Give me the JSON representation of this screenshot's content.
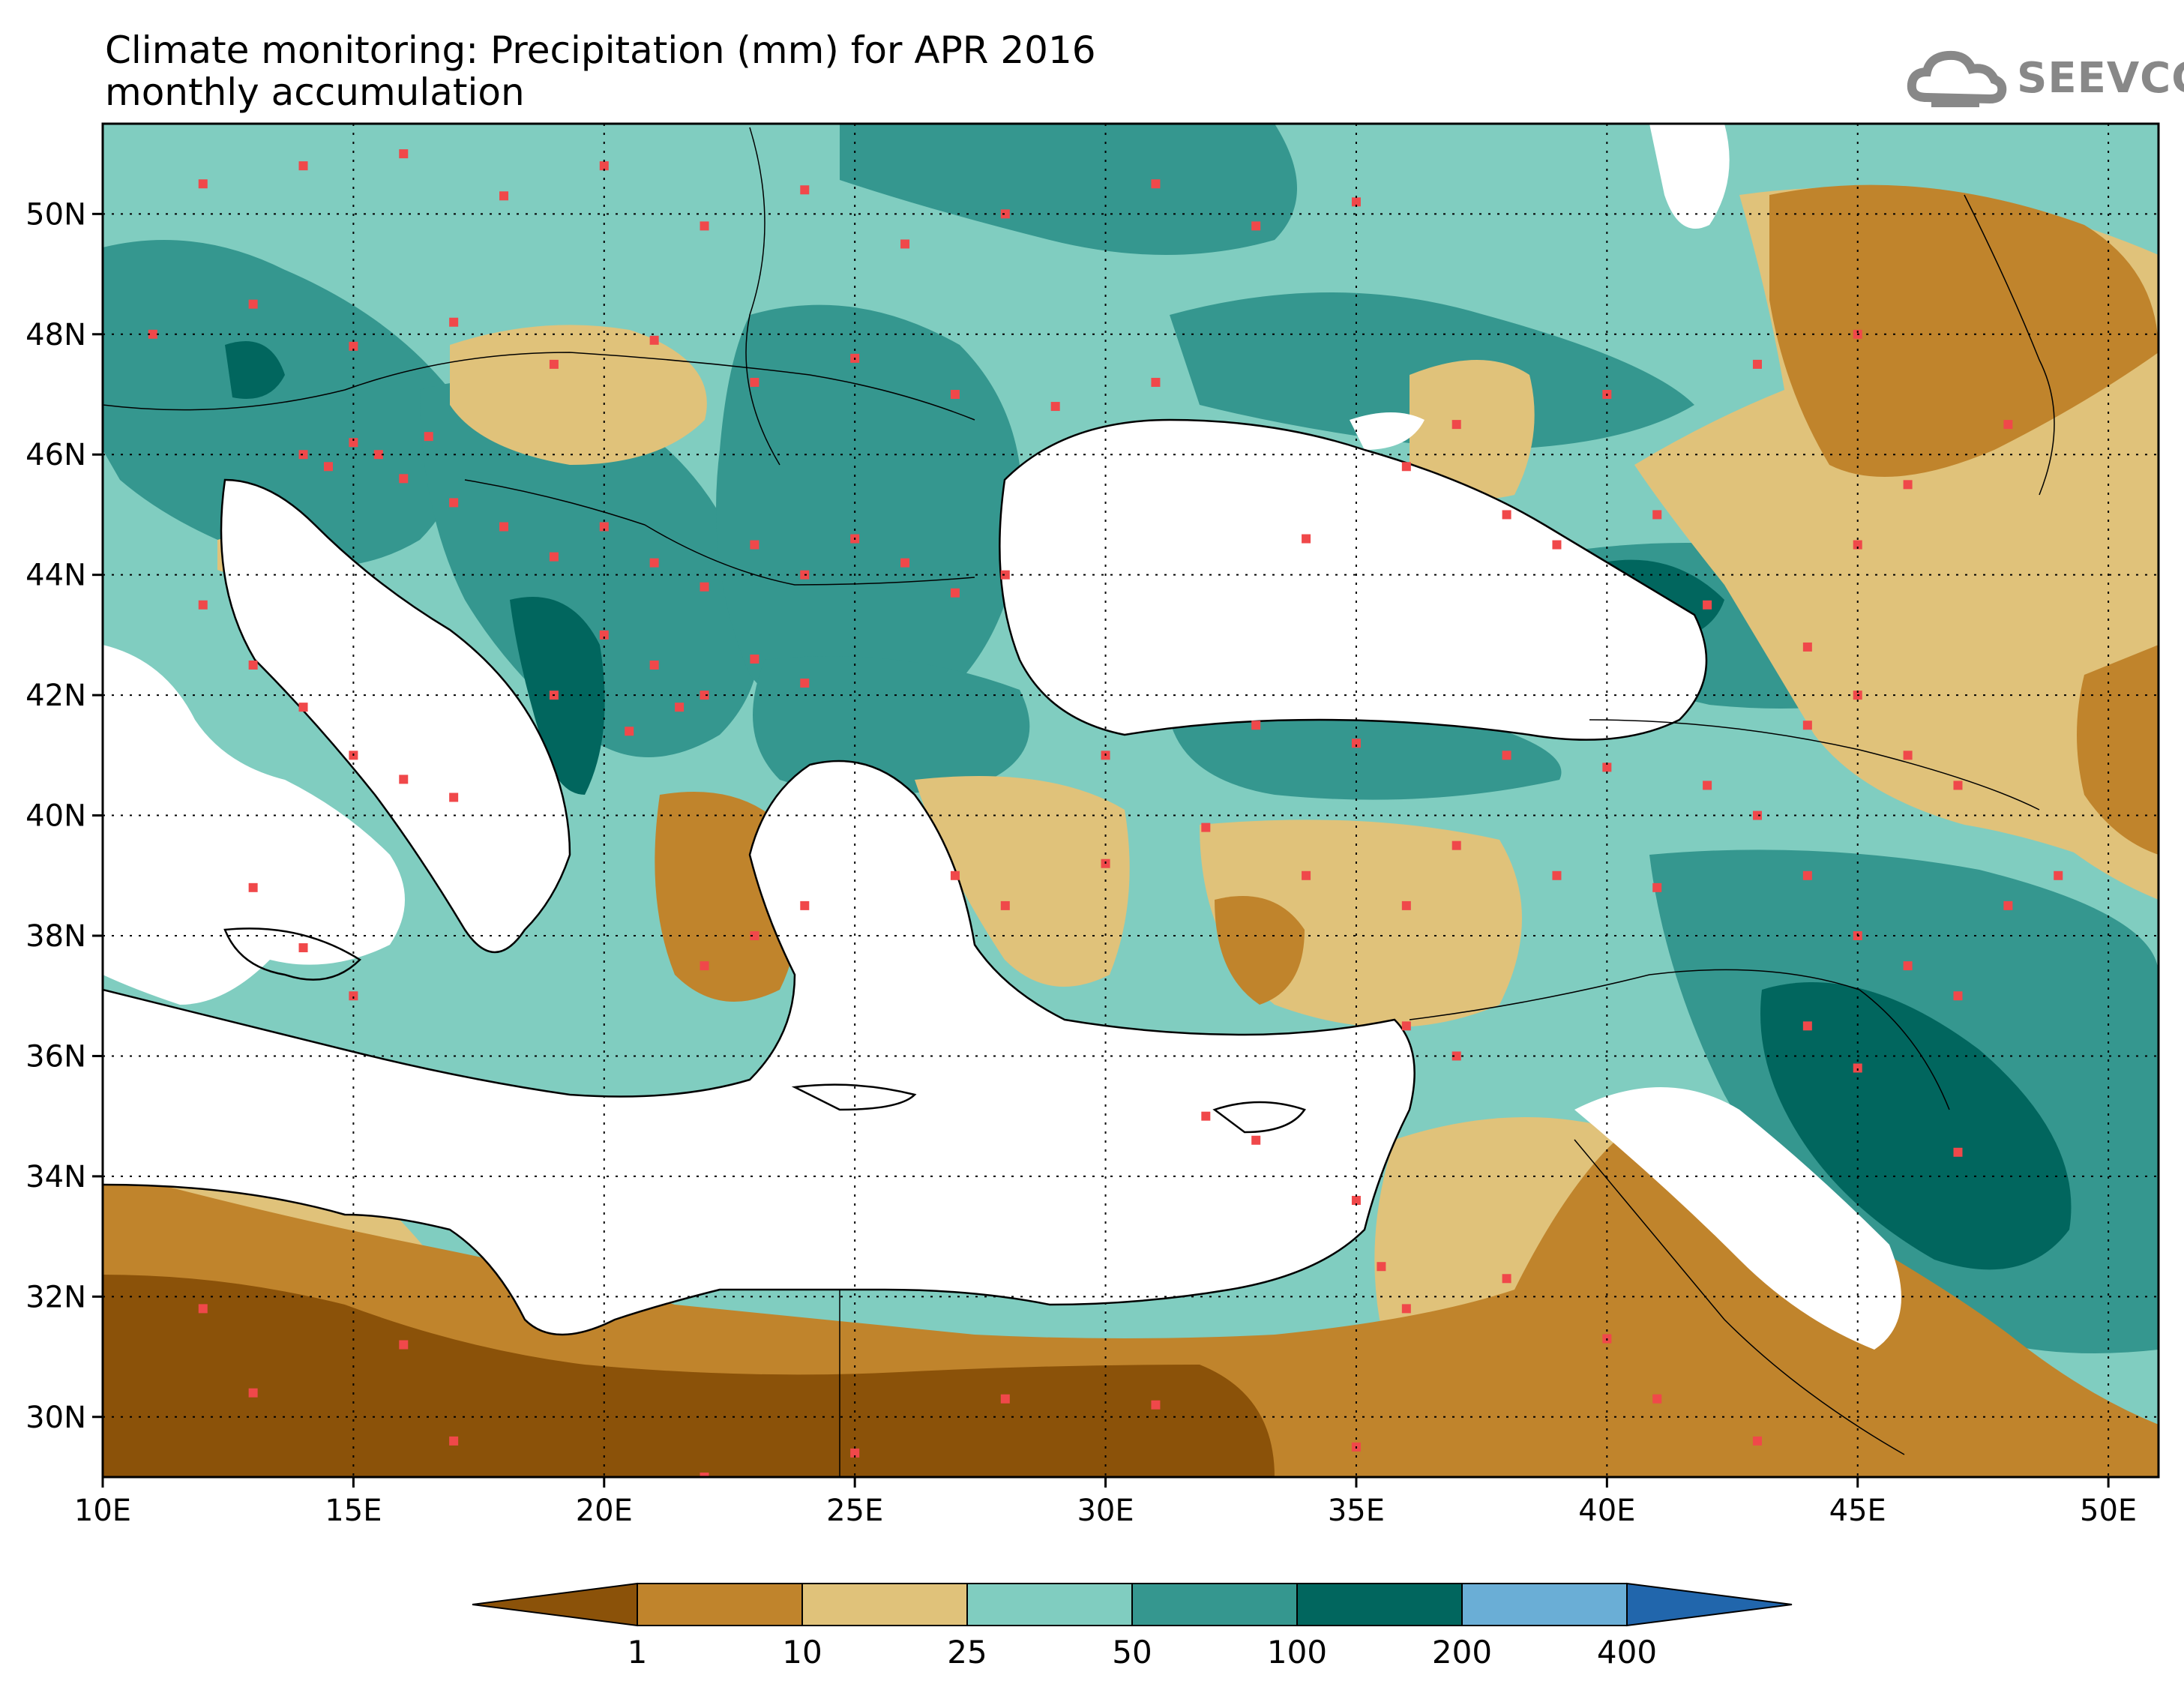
{
  "title": {
    "line1": "Climate monitoring: Precipitation (mm) for APR 2016",
    "line2": "monthly accumulation"
  },
  "logo": {
    "text": "SEEVCCC",
    "icon": "cloud-icon"
  },
  "map": {
    "lon_range": [
      10,
      51
    ],
    "lat_range": [
      29,
      51.5
    ],
    "x_ticks": [
      "10E",
      "15E",
      "20E",
      "25E",
      "30E",
      "35E",
      "40E",
      "45E",
      "50E"
    ],
    "x_tick_values": [
      10,
      15,
      20,
      25,
      30,
      35,
      40,
      45,
      50
    ],
    "y_ticks": [
      "30N",
      "32N",
      "34N",
      "36N",
      "38N",
      "40N",
      "42N",
      "44N",
      "46N",
      "48N",
      "50N"
    ],
    "y_tick_values": [
      30,
      32,
      34,
      36,
      38,
      40,
      42,
      44,
      46,
      48,
      50
    ],
    "grid": "dotted"
  },
  "colorbar": {
    "boundaries": [
      "1",
      "10",
      "25",
      "50",
      "100",
      "200",
      "400"
    ],
    "colors": [
      "#8b5209",
      "#c0842c",
      "#e0c27a",
      "#80cdc0",
      "#35978f",
      "#01665e",
      "#6aaed6",
      "#2166ac"
    ],
    "extend": "both"
  },
  "colors": {
    "sea": "#ffffff",
    "station": "#f0484a",
    "coast": "#000000"
  }
}
